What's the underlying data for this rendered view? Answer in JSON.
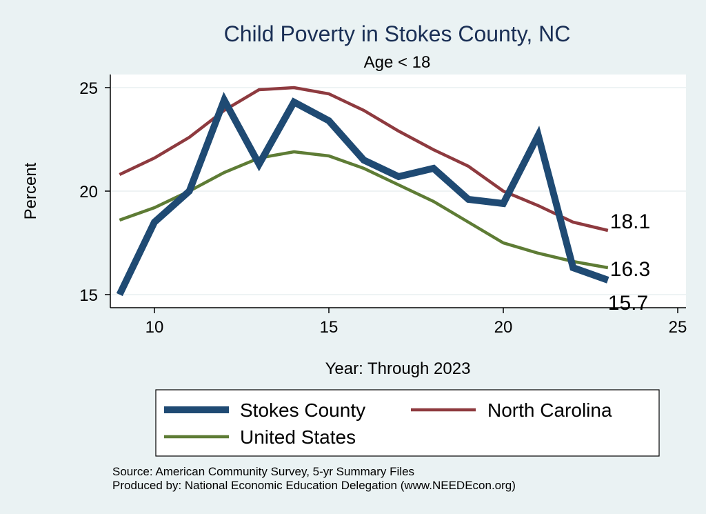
{
  "chart_data": {
    "type": "line",
    "title": "Child Poverty in Stokes County, NC",
    "subtitle": "Age < 18",
    "xlabel": "Year: Through 2023",
    "ylabel": "Percent",
    "xlim": [
      9,
      25
    ],
    "ylim": [
      15,
      25
    ],
    "xticks": [
      10,
      15,
      20,
      25
    ],
    "yticks": [
      15,
      20,
      25
    ],
    "grid": true,
    "legend_position": "bottom",
    "x": [
      9,
      10,
      11,
      12,
      13,
      14,
      15,
      16,
      17,
      18,
      19,
      20,
      21,
      22,
      23
    ],
    "series": [
      {
        "name": "Stokes County",
        "color": "#1f4a73",
        "values": [
          15.0,
          18.5,
          20.0,
          24.4,
          21.3,
          24.3,
          23.4,
          21.5,
          20.7,
          21.1,
          19.6,
          19.4,
          22.7,
          16.3,
          15.7
        ],
        "end_label": "15.7"
      },
      {
        "name": "North Carolina",
        "color": "#8e3a3f",
        "values": [
          20.8,
          21.6,
          22.6,
          23.9,
          24.9,
          25.0,
          24.7,
          23.9,
          22.9,
          22.0,
          21.2,
          20.0,
          19.3,
          18.5,
          18.1
        ],
        "end_label": "18.1"
      },
      {
        "name": "United States",
        "color": "#5e7c35",
        "values": [
          18.6,
          19.2,
          20.0,
          20.9,
          21.6,
          21.9,
          21.7,
          21.1,
          20.3,
          19.5,
          18.5,
          17.5,
          17.0,
          16.6,
          16.3
        ],
        "end_label": "16.3"
      }
    ],
    "notes": [
      "Source: American Community Survey, 5-yr Summary Files",
      "Produced by: National Economic Education Delegation (www.NEEDEcon.org)"
    ]
  }
}
